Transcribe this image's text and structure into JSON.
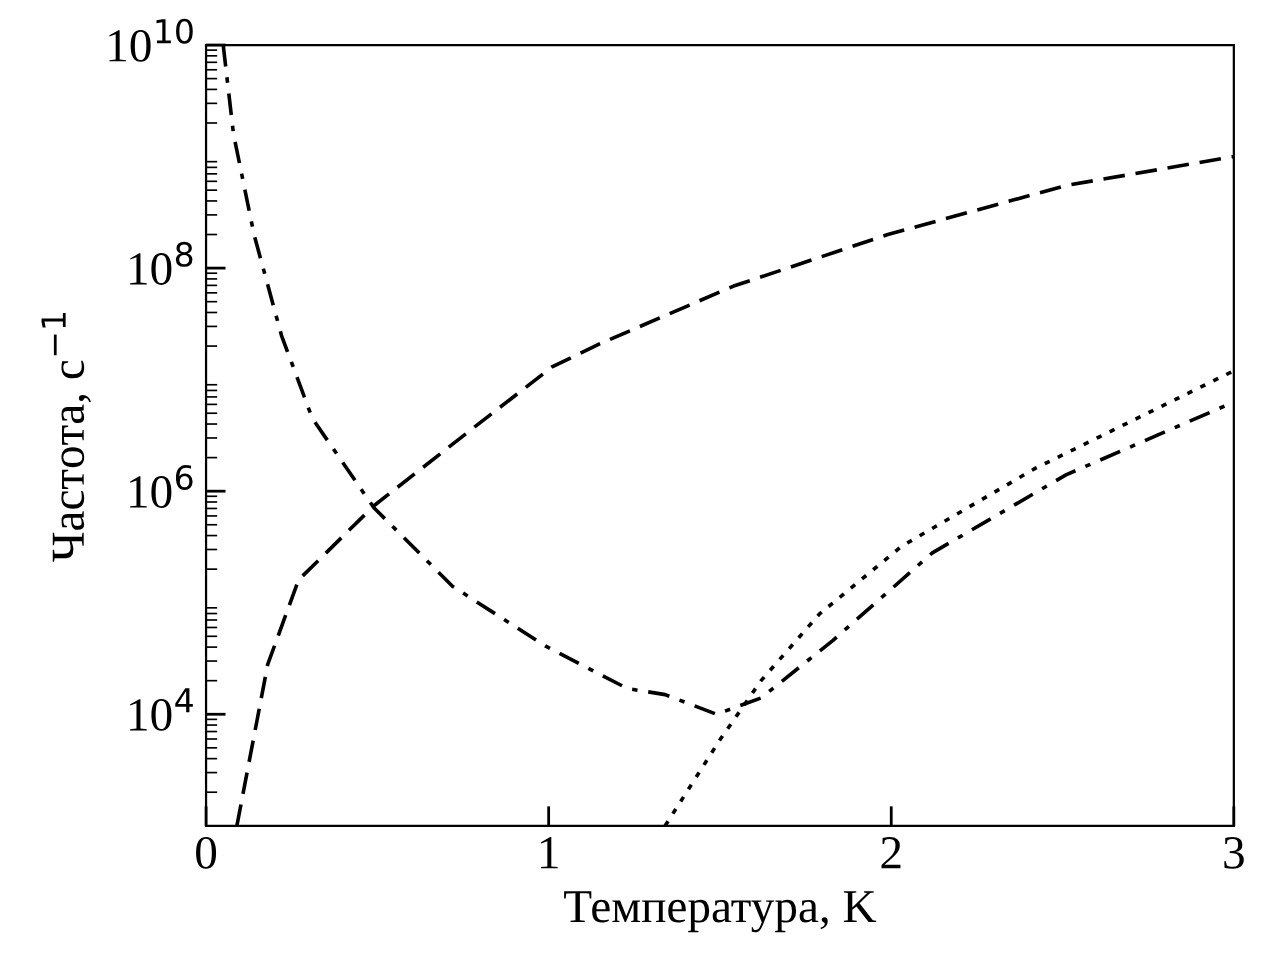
{
  "chart_data": {
    "type": "line",
    "xlabel": "Температура, K",
    "ylabel": "Частота, с$^{−1}$",
    "log": "y",
    "grid": false,
    "legend": false,
    "marker": "none",
    "xlim": [
      0,
      3
    ],
    "xticks": [
      0,
      1,
      2,
      3
    ],
    "ylim": [
      1000,
      10000000000
    ],
    "yticks": [
      {
        "value": 10000,
        "label": "10$^{4}$"
      },
      {
        "value": 1000000,
        "label": "10$^{6}$"
      },
      {
        "value": 100000000,
        "label": "10$^{8}$"
      },
      {
        "value": 10000000000,
        "label": "10$^{10}$"
      }
    ],
    "series": [
      {
        "color": "#000000",
        "line_style": "dashed",
        "x": [
          0.09,
          0.18,
          0.27,
          0.49,
          0.76,
          1.01,
          1.15,
          1.54,
          1.99,
          2.51,
          3.0
        ],
        "values": [
          1000,
          28000,
          160000,
          740000,
          3300000,
          13000000,
          21000000,
          69000000,
          200000000,
          550000000,
          1000000000
        ]
      },
      {
        "color": "#000000",
        "line_style": "dashdot",
        "x": [
          0.05,
          0.08,
          0.14,
          0.22,
          0.31,
          0.49,
          0.72,
          0.99,
          1.23,
          1.34,
          1.49,
          1.62,
          1.83,
          2.12,
          2.51,
          3.0
        ],
        "values": [
          10000000000,
          1600000000,
          200000000,
          25000000,
          4500000,
          710000,
          140000,
          41000,
          17000,
          15000,
          10000,
          14000,
          46000,
          280000,
          1400000,
          6300000
        ]
      },
      {
        "color": "#000000",
        "line_style": "dotted",
        "x": [
          1.34,
          1.5,
          1.62,
          1.79,
          2.03,
          2.42,
          3.0
        ],
        "values": [
          1000,
          5900,
          20000,
          79000,
          320000,
          1600000,
          12000000
        ]
      }
    ]
  }
}
